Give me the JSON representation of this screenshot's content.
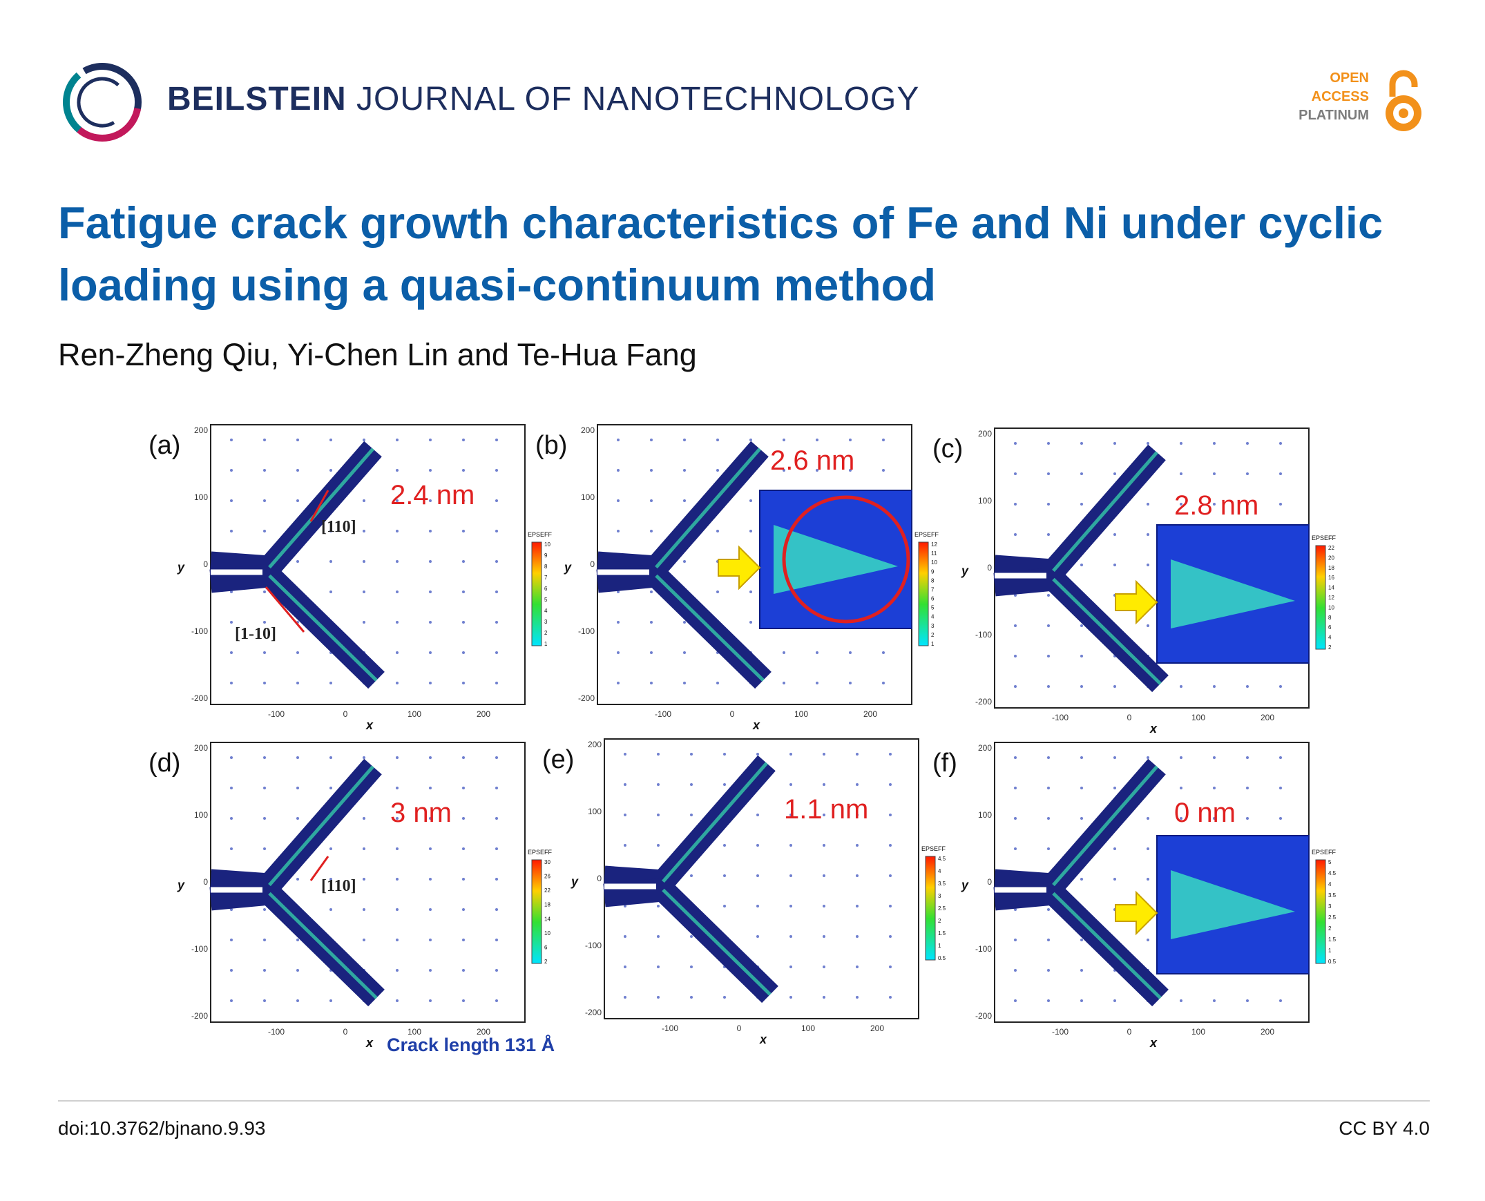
{
  "header": {
    "journal_bold": "BEILSTEIN",
    "journal_rest": "JOURNAL OF NANOTECHNOLOGY",
    "badge": {
      "line1": "OPEN",
      "line2": "ACCESS",
      "line3": "PLATINUM"
    }
  },
  "article": {
    "title": "Fatigue crack growth characteristics of Fe and Ni under cyclic loading using a quasi-continuum method",
    "authors": "Ren-Zheng Qiu, Yi-Chen Lin and Te-Hua Fang"
  },
  "figure": {
    "panels": [
      {
        "label": "(a)",
        "crack": "2.4 nm",
        "legend_title": "EPSEFF",
        "legend_ticks": [
          "10",
          "9",
          "8",
          "7",
          "6",
          "5",
          "4",
          "3",
          "2",
          "1"
        ],
        "miller": [
          "[110]",
          "[1-10]"
        ]
      },
      {
        "label": "(b)",
        "crack": "2.6 nm",
        "legend_title": "EPSEFF",
        "legend_ticks": [
          "12",
          "11",
          "10",
          "9",
          "8",
          "7",
          "6",
          "5",
          "4",
          "3",
          "2",
          "1"
        ]
      },
      {
        "label": "(c)",
        "crack": "2.8 nm",
        "legend_title": "EPSEFF",
        "legend_ticks": [
          "22",
          "20",
          "18",
          "16",
          "14",
          "12",
          "10",
          "8",
          "6",
          "4",
          "2"
        ]
      },
      {
        "label": "(d)",
        "crack": "3 nm",
        "legend_title": "EPSEFF",
        "legend_ticks": [
          "30",
          "26",
          "22",
          "18",
          "14",
          "10",
          "6",
          "2"
        ],
        "miller": [
          "[110]"
        ]
      },
      {
        "label": "(e)",
        "crack": "1.1 nm",
        "legend_title": "EPSEFF",
        "legend_ticks": [
          "4.5",
          "4",
          "3.5",
          "3",
          "2.5",
          "2",
          "1.5",
          "1",
          "0.5"
        ]
      },
      {
        "label": "(f)",
        "crack": "0 nm",
        "legend_title": "EPSEFF",
        "legend_ticks": [
          "5",
          "4.5",
          "4",
          "3.5",
          "3",
          "2.5",
          "2",
          "1.5",
          "1",
          "0.5"
        ]
      }
    ],
    "x_ticks": [
      "-100",
      "0",
      "100",
      "200"
    ],
    "y_ticks": [
      "200",
      "100",
      "0",
      "-100",
      "-200"
    ],
    "x_label": "x",
    "y_label": "y",
    "caption_note": "Crack length 131 Å"
  },
  "footer": {
    "doi": "doi:10.3762/bjnano.9.93",
    "license": "CC BY 4.0"
  },
  "colors": {
    "title": "#0b5ea8",
    "journal": "#1d2e5e",
    "oa_orange": "#f2911b",
    "crack_red": "#e02020",
    "atom_navy": "#1a237e"
  }
}
